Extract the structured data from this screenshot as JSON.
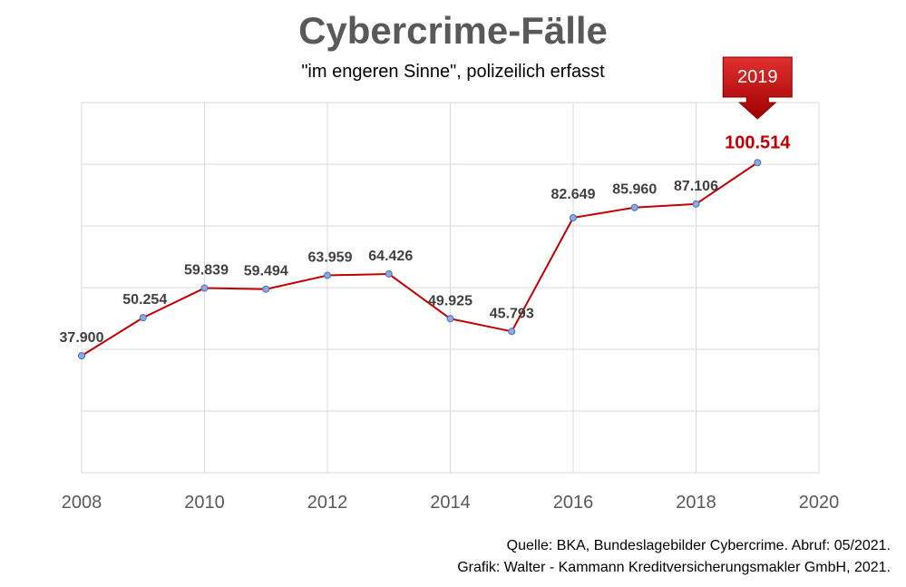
{
  "header": {
    "title": "Cybercrime-Fälle",
    "subtitle": "\"im engeren Sinne\", polizeilich erfasst"
  },
  "footer": {
    "source_line1": "Quelle: BKA, Bundeslagebilder Cybercrime. Abruf: 05/2021.",
    "source_line2": "Grafik: Walter - Kammann Kreditversicherungsmakler GmbH, 2021."
  },
  "colors": {
    "line": "#c00000",
    "marker_fill": "#8ea9db",
    "marker_stroke": "#4472c4",
    "grid": "#d9d9d9",
    "highlight": "#c00000"
  },
  "chart_data": {
    "type": "line",
    "x": [
      2008,
      2009,
      2010,
      2011,
      2012,
      2013,
      2014,
      2015,
      2016,
      2017,
      2018,
      2019
    ],
    "series": [
      {
        "values": [
          37900,
          50254,
          59839,
          59494,
          63959,
          64426,
          49925,
          45793,
          82649,
          85960,
          87106,
          100514
        ]
      }
    ],
    "data_labels": [
      "37.900",
      "50.254",
      "59.839",
      "59.494",
      "63.959",
      "64.426",
      "49.925",
      "45.793",
      "82.649",
      "85.960",
      "87.106",
      "100.514"
    ],
    "xlim": [
      2008,
      2020
    ],
    "ylim": [
      0,
      120000
    ],
    "x_ticks": [
      "2008",
      "2010",
      "2012",
      "2014",
      "2016",
      "2018",
      "2020"
    ],
    "y_tick_labels_shown": false,
    "grid": true,
    "highlight": {
      "label": "2019",
      "value_label": "100.514"
    }
  }
}
